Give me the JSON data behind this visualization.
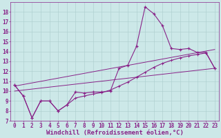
{
  "xlabel": "Windchill (Refroidissement éolien,°C)",
  "bg_color": "#cce8e8",
  "line_color": "#882288",
  "grid_color": "#aacccc",
  "xlim": [
    -0.5,
    23.5
  ],
  "ylim": [
    7,
    19
  ],
  "xticks": [
    0,
    1,
    2,
    3,
    4,
    5,
    6,
    7,
    8,
    9,
    10,
    11,
    12,
    13,
    14,
    15,
    16,
    17,
    18,
    19,
    20,
    21,
    22,
    23
  ],
  "yticks": [
    7,
    8,
    9,
    10,
    11,
    12,
    13,
    14,
    15,
    16,
    17,
    18
  ],
  "line1_x": [
    0,
    1,
    2,
    3,
    4,
    5,
    6,
    7,
    8,
    9,
    10,
    11,
    12,
    13,
    14,
    15,
    16,
    17,
    18,
    19,
    20,
    21,
    22,
    23
  ],
  "line1_y": [
    10.6,
    9.5,
    7.3,
    9.0,
    9.0,
    8.0,
    8.6,
    9.9,
    9.8,
    9.9,
    9.9,
    10.0,
    12.3,
    12.6,
    14.5,
    18.5,
    17.8,
    16.6,
    14.3,
    14.2,
    14.3,
    13.9,
    13.9,
    12.3
  ],
  "line2_x": [
    0,
    1,
    2,
    3,
    4,
    5,
    6,
    7,
    8,
    9,
    10,
    11,
    12,
    13,
    14,
    15,
    16,
    17,
    18,
    19,
    20,
    21,
    22,
    23
  ],
  "line2_y": [
    10.6,
    9.5,
    7.3,
    9.0,
    9.0,
    8.0,
    8.6,
    9.3,
    9.5,
    9.7,
    9.85,
    10.1,
    10.5,
    10.9,
    11.4,
    11.9,
    12.4,
    12.8,
    13.1,
    13.35,
    13.55,
    13.7,
    13.85,
    12.3
  ],
  "line3_x": [
    0,
    23
  ],
  "line3_y": [
    10.5,
    14.2
  ],
  "line4_x": [
    0,
    23
  ],
  "line4_y": [
    10.0,
    12.3
  ],
  "tick_font_size": 5.5,
  "xlabel_font_size": 6.5
}
